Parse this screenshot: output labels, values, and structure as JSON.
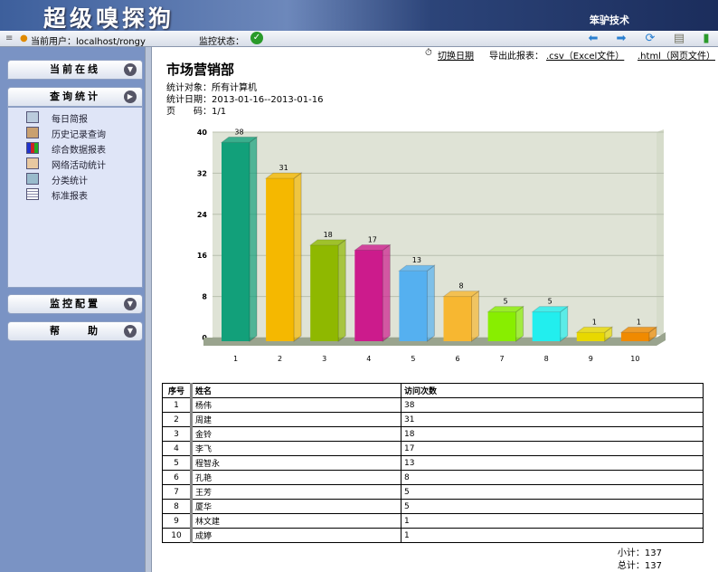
{
  "header": {
    "title": "超级嗅探狗",
    "company": "笨驴技术"
  },
  "toolbar": {
    "user_label": "当前用户：localhost/rongy",
    "monitor_label": "监控状态：",
    "icons": [
      "back-icon",
      "forward-icon",
      "refresh-icon",
      "print-icon",
      "exit-icon"
    ]
  },
  "sidebar": {
    "sections": [
      {
        "label": "当前在线"
      },
      {
        "label": "查询统计"
      },
      {
        "label": "监控配置"
      },
      {
        "label": "帮　　助"
      }
    ],
    "items": [
      {
        "label": "每日简报"
      },
      {
        "label": "历史记录查询"
      },
      {
        "label": "综合数据报表"
      },
      {
        "label": "网络活动统计"
      },
      {
        "label": "分类统计"
      },
      {
        "label": "标准报表"
      }
    ]
  },
  "main": {
    "switch_date": "切换日期",
    "export_label": "导出此报表：",
    "export_csv": ".csv（Excel文件）",
    "export_html": ".html（网页文件）",
    "title": "市场营销部",
    "target": "统计对象：所有计算机",
    "date": "统计日期：2013-01-16--2013-01-16",
    "page": "页　　码：1/1",
    "table": {
      "headers": [
        "序号",
        "姓名",
        "访问次数"
      ],
      "rows": [
        [
          "1",
          "杨伟",
          "38"
        ],
        [
          "2",
          "周建",
          "31"
        ],
        [
          "3",
          "金铃",
          "18"
        ],
        [
          "4",
          "李飞",
          "17"
        ],
        [
          "5",
          "程智永",
          "13"
        ],
        [
          "6",
          "孔艳",
          "8"
        ],
        [
          "7",
          "王芳",
          "5"
        ],
        [
          "8",
          "厦华",
          "5"
        ],
        [
          "9",
          "林文建",
          "1"
        ],
        [
          "10",
          "成婷",
          "1"
        ]
      ]
    },
    "subtotal": "小计：137",
    "total": "总计：137"
  },
  "chart_data": {
    "type": "bar",
    "categories": [
      "1",
      "2",
      "3",
      "4",
      "5",
      "6",
      "7",
      "8",
      "9",
      "10"
    ],
    "values": [
      38,
      31,
      18,
      17,
      13,
      8,
      5,
      5,
      1,
      1
    ],
    "ylim": [
      0,
      40
    ],
    "yticks": [
      0,
      8,
      16,
      24,
      32,
      40
    ],
    "grid": true,
    "colors": [
      "#12a07a",
      "#f5b800",
      "#8fb800",
      "#cc1b8c",
      "#55b0f0",
      "#f7b731",
      "#88ee00",
      "#22eeee",
      "#e8d800",
      "#f08a00"
    ]
  }
}
